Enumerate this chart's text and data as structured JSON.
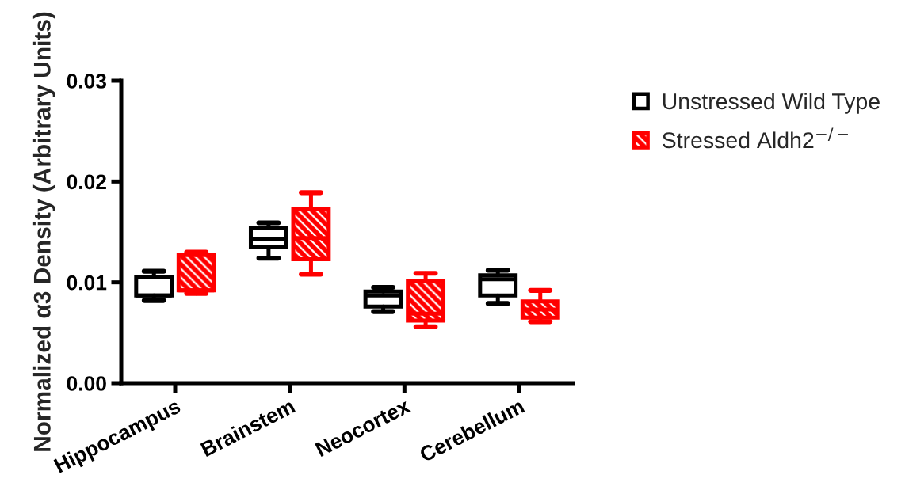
{
  "chart_data": {
    "type": "box",
    "ylabel": "Normalized α3 Density (Arbitrary Units)",
    "categories": [
      "Hippocampus",
      "Brainstem",
      "Neocortex",
      "Cerebellum"
    ],
    "ylim": [
      0,
      0.03
    ],
    "yticks": [
      {
        "value": 0,
        "label": "0.00"
      },
      {
        "value": 0.01,
        "label": "0.01"
      },
      {
        "value": 0.02,
        "label": "0.02"
      },
      {
        "value": 0.03,
        "label": "0.03"
      }
    ],
    "legend": "top right",
    "series": [
      {
        "name": "Unstressed Wild Type",
        "color": "#000000",
        "boxes": [
          {
            "low": 0.0082,
            "q1": 0.0087,
            "median": 0.0087,
            "q3": 0.0105,
            "high": 0.0111
          },
          {
            "low": 0.0124,
            "q1": 0.0135,
            "median": 0.0143,
            "q3": 0.0154,
            "high": 0.0159
          },
          {
            "low": 0.0071,
            "q1": 0.0076,
            "median": 0.0087,
            "q3": 0.0091,
            "high": 0.0095
          },
          {
            "low": 0.0079,
            "q1": 0.0087,
            "median": 0.0103,
            "q3": 0.0107,
            "high": 0.0112
          }
        ]
      },
      {
        "name": "Stressed Aldh2$^{−/−}$",
        "color": "#ff0000",
        "boxes": [
          {
            "low": 0.0089,
            "q1": 0.0092,
            "median": 0.0092,
            "q3": 0.0127,
            "high": 0.013
          },
          {
            "low": 0.0108,
            "q1": 0.0123,
            "median": 0.0144,
            "q3": 0.0173,
            "high": 0.0189
          },
          {
            "low": 0.0056,
            "q1": 0.0062,
            "median": 0.0069,
            "q3": 0.0101,
            "high": 0.0109
          },
          {
            "low": 0.0061,
            "q1": 0.0065,
            "median": 0.0073,
            "q3": 0.0081,
            "high": 0.0092
          }
        ]
      }
    ]
  }
}
